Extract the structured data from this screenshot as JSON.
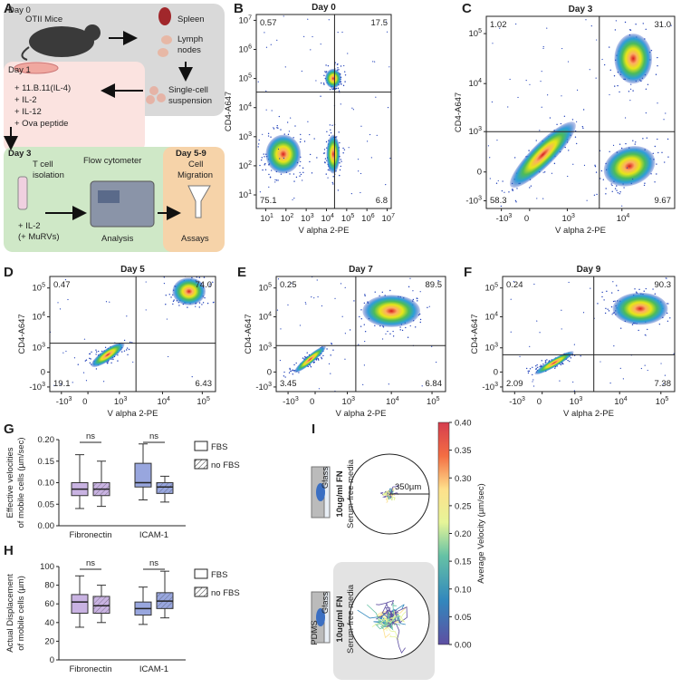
{
  "panel_labels": [
    "A",
    "B",
    "C",
    "D",
    "E",
    "F",
    "G",
    "H",
    "I"
  ],
  "workflow": {
    "day0": "Day 0",
    "mice": "OTII Mice",
    "spleen": "Spleen",
    "lymph": [
      "Lymph",
      "nodes"
    ],
    "day1": "Day 1",
    "culture": [
      "+ 11.B.11(IL-4)",
      "+ IL-2",
      "+ IL-12",
      "+ Ova peptide"
    ],
    "suspension": [
      "Single-cell",
      "suspension"
    ],
    "day3": "Day 3",
    "isolation": [
      "T cell",
      "isolation"
    ],
    "treatment": [
      "+ IL-2",
      "(+ MuRVs)"
    ],
    "cytometer": "Flow cytometer",
    "analysis": "Analysis",
    "day59": "Day 5-9",
    "migration": [
      "Cell",
      "Migration"
    ],
    "assays": "Assays"
  },
  "flow_plots": [
    {
      "title": "Day 0",
      "x_label": "V alpha 2-PE",
      "y_label": "CD4-A647",
      "xticks": [
        {
          "base": "10",
          "exp": "1"
        },
        {
          "base": "10",
          "exp": "2"
        },
        {
          "base": "10",
          "exp": "3"
        },
        {
          "base": "10",
          "exp": "4"
        },
        {
          "base": "10",
          "exp": "5"
        },
        {
          "base": "10",
          "exp": "6"
        },
        {
          "base": "10",
          "exp": "7"
        }
      ],
      "yticks": [
        {
          "base": "10",
          "exp": "1"
        },
        {
          "base": "10",
          "exp": "2"
        },
        {
          "base": "10",
          "exp": "3"
        },
        {
          "base": "10",
          "exp": "4"
        },
        {
          "base": "10",
          "exp": "5"
        },
        {
          "base": "10",
          "exp": "6"
        },
        {
          "base": "10",
          "exp": "7"
        }
      ],
      "quadrants": [
        "0.57",
        "17.5",
        "75.1",
        "6.8"
      ]
    },
    {
      "title": "Day 3",
      "x_label": "V alpha 2-PE",
      "y_label": "CD4-A647",
      "xticks": [
        {
          "base": "-10",
          "exp": "3"
        },
        "0",
        {
          "base": "10",
          "exp": "3"
        },
        {
          "base": "10",
          "exp": "4"
        }
      ],
      "yticks": [
        {
          "base": "-10",
          "exp": "3"
        },
        "0",
        {
          "base": "10",
          "exp": "3"
        },
        {
          "base": "10",
          "exp": "4"
        },
        {
          "base": "10",
          "exp": "5"
        }
      ],
      "quadrants": [
        "1.02",
        "31.0",
        "58.3",
        "9.67"
      ]
    },
    {
      "title": "Day 5",
      "x_label": "V alpha 2-PE",
      "y_label": "CD4-A647",
      "xticks": [
        {
          "base": "-10",
          "exp": "3"
        },
        "0",
        {
          "base": "10",
          "exp": "3"
        },
        {
          "base": "10",
          "exp": "4"
        },
        {
          "base": "10",
          "exp": "5"
        }
      ],
      "yticks": [
        {
          "base": "-10",
          "exp": "3"
        },
        "0",
        {
          "base": "10",
          "exp": "3"
        },
        {
          "base": "10",
          "exp": "4"
        },
        {
          "base": "10",
          "exp": "5"
        }
      ],
      "quadrants": [
        "0.47",
        "74.0",
        "19.1",
        "6.43"
      ]
    },
    {
      "title": "Day 7",
      "x_label": "V alpha 2-PE",
      "y_label": "CD4-A647",
      "xticks": [
        {
          "base": "-10",
          "exp": "3"
        },
        "0",
        {
          "base": "10",
          "exp": "3"
        },
        {
          "base": "10",
          "exp": "4"
        },
        {
          "base": "10",
          "exp": "5"
        }
      ],
      "yticks": [
        {
          "base": "-10",
          "exp": "3"
        },
        "0",
        {
          "base": "10",
          "exp": "3"
        },
        {
          "base": "10",
          "exp": "4"
        },
        {
          "base": "10",
          "exp": "5"
        }
      ],
      "quadrants": [
        "0.25",
        "89.5",
        "3.45",
        "6.84"
      ]
    },
    {
      "title": "Day 9",
      "x_label": "V alpha 2-PE",
      "y_label": "CD4-A647",
      "xticks": [
        {
          "base": "-10",
          "exp": "3"
        },
        "0",
        {
          "base": "10",
          "exp": "3"
        },
        {
          "base": "10",
          "exp": "4"
        },
        {
          "base": "10",
          "exp": "5"
        }
      ],
      "yticks": [
        {
          "base": "-10",
          "exp": "3"
        },
        "0",
        {
          "base": "10",
          "exp": "3"
        },
        {
          "base": "10",
          "exp": "4"
        },
        {
          "base": "10",
          "exp": "5"
        }
      ],
      "quadrants": [
        "0.24",
        "90.3",
        "2.09",
        "7.38"
      ]
    }
  ],
  "box_plots": [
    {
      "y_label": [
        "Effective velocities",
        "of mobile cells (µm/sec)"
      ],
      "ylim": [
        0,
        0.2
      ],
      "yticks": [
        {
          "value": 0,
          "label": "0.00"
        },
        {
          "value": 0.05,
          "label": "0.05"
        },
        {
          "value": 0.1,
          "label": "0.10"
        },
        {
          "value": 0.15,
          "label": "0.15"
        },
        {
          "value": 0.2,
          "label": "0.20"
        }
      ],
      "legend": [
        "FBS",
        "no FBS"
      ],
      "annotations": [
        "ns",
        "ns"
      ],
      "groups": [
        {
          "name": "Fibronectin",
          "color": "#c9b3e2",
          "boxes": [
            {
              "whisker_low": 0.04,
              "q1": 0.07,
              "median": 0.085,
              "q3": 0.1,
              "whisker_high": 0.165
            },
            {
              "whisker_low": 0.045,
              "q1": 0.07,
              "median": 0.085,
              "q3": 0.1,
              "whisker_high": 0.15
            }
          ]
        },
        {
          "name": "ICAM-1",
          "color": "#98a6de",
          "boxes": [
            {
              "whisker_low": 0.06,
              "q1": 0.09,
              "median": 0.1,
              "q3": 0.145,
              "whisker_high": 0.19
            },
            {
              "whisker_low": 0.055,
              "q1": 0.075,
              "median": 0.09,
              "q3": 0.1,
              "whisker_high": 0.115
            }
          ]
        }
      ]
    },
    {
      "y_label": [
        "Actual Displacement",
        "of mobile cells (µm)"
      ],
      "ylim": [
        0,
        100
      ],
      "yticks": [
        0,
        20,
        40,
        60,
        80,
        100
      ],
      "legend": [
        "FBS",
        "no FBS"
      ],
      "annotations": [
        "ns",
        "ns"
      ],
      "groups": [
        {
          "name": "Fibronectin",
          "color": "#c9b3e2",
          "boxes": [
            {
              "whisker_low": 35,
              "q1": 50,
              "median": 62,
              "q3": 70,
              "whisker_high": 90
            },
            {
              "whisker_low": 40,
              "q1": 50,
              "median": 58,
              "q3": 68,
              "whisker_high": 80
            }
          ]
        },
        {
          "name": "ICAM-1",
          "color": "#98a6de",
          "boxes": [
            {
              "whisker_low": 38,
              "q1": 48,
              "median": 55,
              "q3": 62,
              "whisker_high": 78
            },
            {
              "whisker_low": 45,
              "q1": 55,
              "median": 63,
              "q3": 72,
              "whisker_high": 95
            }
          ]
        }
      ]
    }
  ],
  "tracking": {
    "conditions": [
      {
        "coating": "10ug/ml FN",
        "media": "Serum-free media",
        "inset": "Glass"
      },
      {
        "coating": "10ug/ml FN",
        "media": "Serum-free media",
        "inset": "Glass",
        "inset_top": "PDMS"
      }
    ],
    "scale": "350µm",
    "colorbar": {
      "label": "Average Velocity (µm/sec)",
      "lim": [
        0,
        0.4
      ],
      "ticks": [
        {
          "value": 0,
          "label": "0.00"
        },
        {
          "value": 0.05,
          "label": "0.05"
        },
        {
          "value": 0.1,
          "label": "0.10"
        },
        {
          "value": 0.15,
          "label": "0.15"
        },
        {
          "value": 0.2,
          "label": "0.20"
        },
        {
          "value": 0.25,
          "label": "0.25"
        },
        {
          "value": 0.3,
          "label": "0.30"
        },
        {
          "value": 0.35,
          "label": "0.35"
        },
        {
          "value": 0.4,
          "label": "0.40"
        }
      ]
    }
  }
}
